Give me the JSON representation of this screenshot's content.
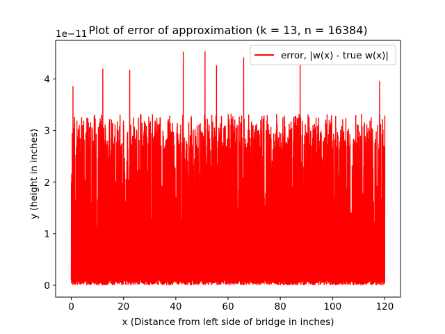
{
  "chart_data": {
    "type": "line",
    "title": "Plot of error of approximation (k = 13, n = 16384)",
    "xlabel": "x (Distance from left side of bridge in inches)",
    "ylabel": "y (height in inches)",
    "y_offset_label": "1e−11",
    "xlim": [
      -6,
      126
    ],
    "ylim": [
      -0.23,
      4.75
    ],
    "x_ticks": [
      0,
      20,
      40,
      60,
      80,
      100,
      120
    ],
    "x_tick_labels": [
      "0",
      "20",
      "40",
      "60",
      "80",
      "100",
      "120"
    ],
    "y_ticks": [
      0,
      1,
      2,
      3,
      4
    ],
    "y_tick_labels": [
      "0",
      "1",
      "2",
      "3",
      "4"
    ],
    "legend": {
      "location": "upper right",
      "entries": [
        "error, |w(x) - true w(x)|"
      ]
    },
    "series": [
      {
        "name": "error, |w(x) - true w(x)|",
        "color": "#ff0000",
        "x_range": [
          0,
          120
        ],
        "n_points": 16384,
        "typical_range": [
          0,
          3.5
        ],
        "peaks": [
          {
            "x": 0.6,
            "y": 3.86
          },
          {
            "x": 12.0,
            "y": 4.2
          },
          {
            "x": 22.3,
            "y": 4.18
          },
          {
            "x": 42.8,
            "y": 4.53
          },
          {
            "x": 51.1,
            "y": 4.54
          },
          {
            "x": 55.5,
            "y": 4.27
          },
          {
            "x": 66.0,
            "y": 4.42
          },
          {
            "x": 87.6,
            "y": 4.27
          },
          {
            "x": 118.0,
            "y": 3.96
          }
        ]
      }
    ]
  }
}
